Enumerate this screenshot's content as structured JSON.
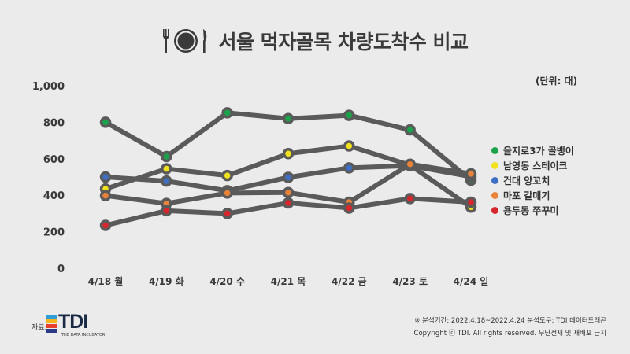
{
  "title": "서울 먹자골목 차량도착수 비교",
  "unit_label": "(단위: 대)",
  "chart_data": {
    "type": "line",
    "categories": [
      "4/18 월",
      "4/19 화",
      "4/20 수",
      "4/21 목",
      "4/22 금",
      "4/23 토",
      "4/24 일"
    ],
    "ylim": [
      0,
      1000
    ],
    "yticks": [
      "0",
      "200",
      "400",
      "600",
      "800",
      "1,000"
    ],
    "ytick_values": [
      0,
      200,
      400,
      600,
      800,
      1000
    ],
    "grid": false,
    "legend_position": "right",
    "series": [
      {
        "name": "을지로3가 골뱅이",
        "color": "#1aa34a",
        "values": [
          800,
          612,
          852,
          820,
          838,
          758,
          482
        ]
      },
      {
        "name": "남영동 스테이크",
        "color": "#f2e21c",
        "values": [
          435,
          545,
          508,
          628,
          670,
          565,
          335
        ]
      },
      {
        "name": "건대 양꼬치",
        "color": "#3f6fc5",
        "values": [
          500,
          478,
          425,
          498,
          550,
          562,
          502
        ]
      },
      {
        "name": "마포 갈매기",
        "color": "#e9833a",
        "values": [
          398,
          355,
          412,
          415,
          362,
          570,
          518
        ]
      },
      {
        "name": "용두동 쭈꾸미",
        "color": "#d7262c",
        "values": [
          235,
          315,
          300,
          358,
          330,
          382,
          362
        ]
      }
    ]
  },
  "source_label": "자료:",
  "logo": {
    "text": "TDI",
    "tagline": "THE DATA INCUBATOR",
    "bar_colors": [
      "#2f9ed8",
      "#f4b41a",
      "#e8402b",
      "#2b3a87"
    ]
  },
  "footer": {
    "line1": "※ 분석기간: 2022.4.18~2022.4.24   분석도구: TDI 데이터드래곤",
    "line2": "Copyright ⓒ TDI. All rights reserved. 무단전재 및 재배포 금지"
  },
  "icon": "plate-fork-knife-icon",
  "line_color": "#5a5a5a"
}
